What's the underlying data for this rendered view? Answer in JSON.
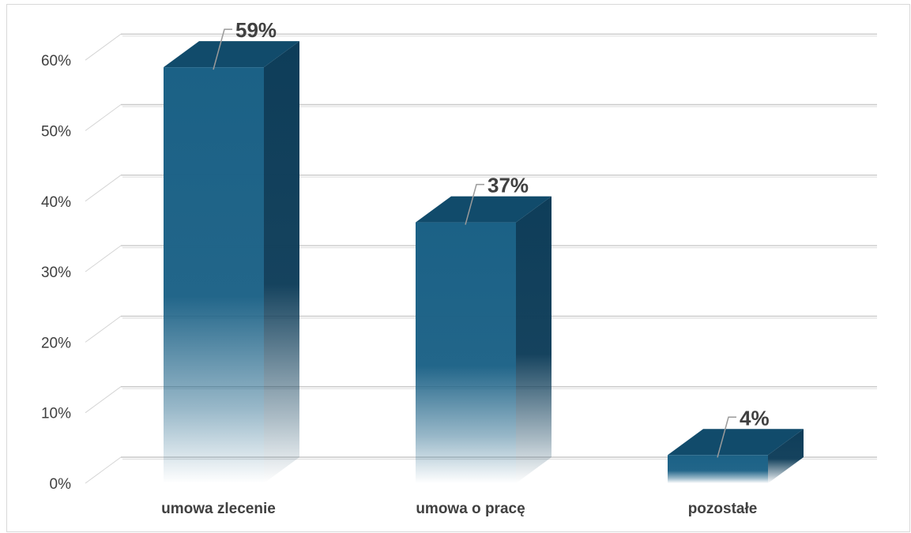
{
  "chart_data": {
    "type": "bar",
    "categories": [
      "umowa zlecenie",
      "umowa o pracę",
      "pozostałe"
    ],
    "values": [
      59,
      37,
      4
    ],
    "data_labels": [
      "59%",
      "37%",
      "4%"
    ],
    "title": "",
    "xlabel": "",
    "ylabel": "",
    "ylim": [
      0,
      60
    ],
    "yticks": [
      "0%",
      "10%",
      "20%",
      "30%",
      "40%",
      "50%",
      "60%"
    ],
    "grid": true,
    "three_d": true,
    "colors": {
      "bar_front": "#1b6186",
      "bar_side": "#0e3d59",
      "bar_top": "#114b6b",
      "fade": "#ffffff"
    }
  }
}
